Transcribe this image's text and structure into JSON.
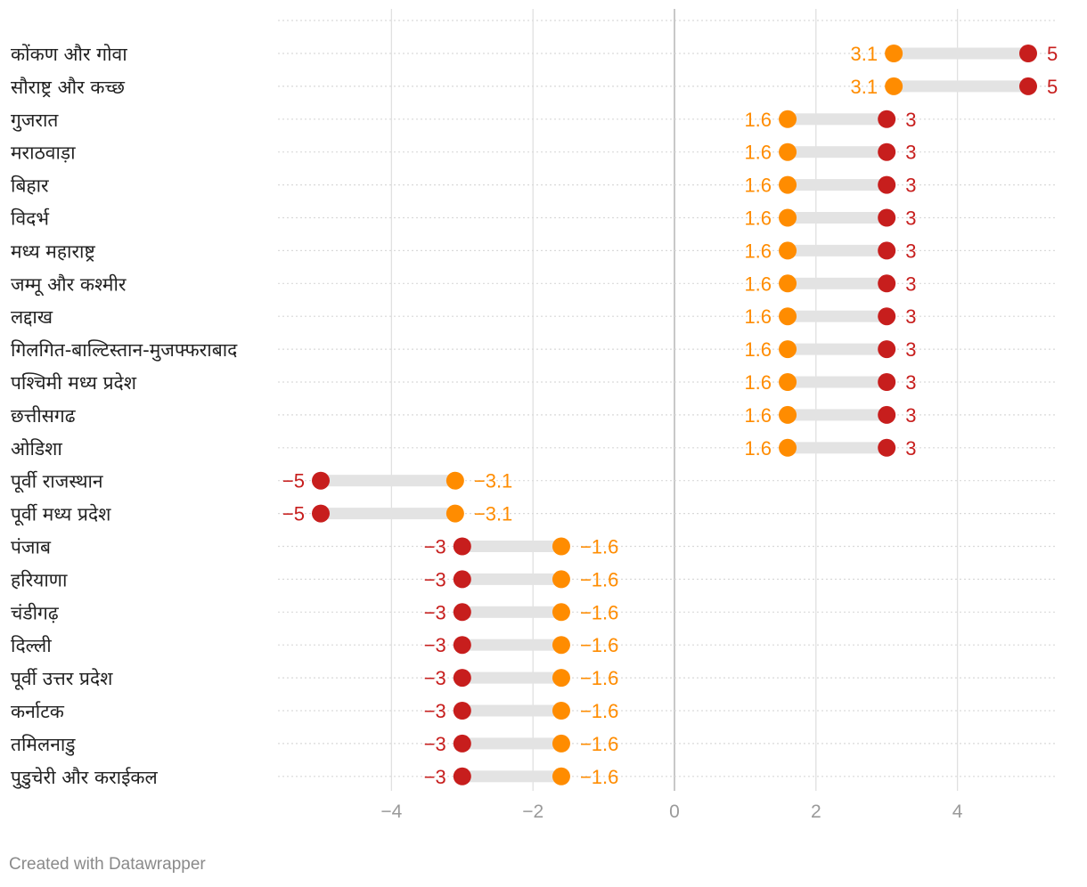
{
  "colors": {
    "min_marker": "#ff8c00",
    "max_marker": "#c71e1d",
    "range_bar": "#e3e3e3",
    "grid": "#e0e0e0",
    "zero_line": "#c8c8c8",
    "row_dots": "#d9d9d9",
    "label_text": "#222222",
    "tick_text": "#9a9a9a"
  },
  "chart_data": {
    "type": "range-plot",
    "xlim": [
      -5.6,
      5.4
    ],
    "ticks": [
      {
        "value": -4,
        "label": "−4"
      },
      {
        "value": -2,
        "label": "−2"
      },
      {
        "value": 0,
        "label": "0"
      },
      {
        "value": 2,
        "label": "2"
      },
      {
        "value": 4,
        "label": "4"
      }
    ],
    "series": [
      {
        "name": "orange",
        "color": "#ff8c00"
      },
      {
        "name": "red",
        "color": "#c71e1d"
      }
    ],
    "rows": [
      {
        "label": "कोंकण और गोवा",
        "orange": 3.1,
        "red": 5,
        "orange_label": "3.1",
        "red_label": "5"
      },
      {
        "label": "सौराष्ट्र और कच्छ",
        "orange": 3.1,
        "red": 5,
        "orange_label": "3.1",
        "red_label": "5"
      },
      {
        "label": "गुजरात",
        "orange": 1.6,
        "red": 3,
        "orange_label": "1.6",
        "red_label": "3"
      },
      {
        "label": "मराठवाड़ा",
        "orange": 1.6,
        "red": 3,
        "orange_label": "1.6",
        "red_label": "3"
      },
      {
        "label": "बिहार",
        "orange": 1.6,
        "red": 3,
        "orange_label": "1.6",
        "red_label": "3"
      },
      {
        "label": "विदर्भ",
        "orange": 1.6,
        "red": 3,
        "orange_label": "1.6",
        "red_label": "3"
      },
      {
        "label": "मध्य महाराष्ट्र",
        "orange": 1.6,
        "red": 3,
        "orange_label": "1.6",
        "red_label": "3"
      },
      {
        "label": "जम्मू और कश्मीर",
        "orange": 1.6,
        "red": 3,
        "orange_label": "1.6",
        "red_label": "3"
      },
      {
        "label": "लद्दाख",
        "orange": 1.6,
        "red": 3,
        "orange_label": "1.6",
        "red_label": "3"
      },
      {
        "label": "गिलगित-बाल्टिस्तान-मुजफ्फराबाद",
        "orange": 1.6,
        "red": 3,
        "orange_label": "1.6",
        "red_label": "3"
      },
      {
        "label": "पश्चिमी मध्य प्रदेश",
        "orange": 1.6,
        "red": 3,
        "orange_label": "1.6",
        "red_label": "3"
      },
      {
        "label": "छत्तीसगढ",
        "orange": 1.6,
        "red": 3,
        "orange_label": "1.6",
        "red_label": "3"
      },
      {
        "label": "ओडिशा",
        "orange": 1.6,
        "red": 3,
        "orange_label": "1.6",
        "red_label": "3"
      },
      {
        "label": "पूर्वी राजस्थान",
        "orange": -3.1,
        "red": -5,
        "orange_label": "−3.1",
        "red_label": "−5"
      },
      {
        "label": "पूर्वी मध्य प्रदेश",
        "orange": -3.1,
        "red": -5,
        "orange_label": "−3.1",
        "red_label": "−5"
      },
      {
        "label": "पंजाब",
        "orange": -1.6,
        "red": -3,
        "orange_label": "−1.6",
        "red_label": "−3"
      },
      {
        "label": "हरियाणा",
        "orange": -1.6,
        "red": -3,
        "orange_label": "−1.6",
        "red_label": "−3"
      },
      {
        "label": "चंडीगढ़",
        "orange": -1.6,
        "red": -3,
        "orange_label": "−1.6",
        "red_label": "−3"
      },
      {
        "label": "दिल्ली",
        "orange": -1.6,
        "red": -3,
        "orange_label": "−1.6",
        "red_label": "−3"
      },
      {
        "label": "पूर्वी उत्तर प्रदेश",
        "orange": -1.6,
        "red": -3,
        "orange_label": "−1.6",
        "red_label": "−3"
      },
      {
        "label": "कर्नाटक",
        "orange": -1.6,
        "red": -3,
        "orange_label": "−1.6",
        "red_label": "−3"
      },
      {
        "label": "तमिलनाडु",
        "orange": -1.6,
        "red": -3,
        "orange_label": "−1.6",
        "red_label": "−3"
      },
      {
        "label": "पुडुचेरी और कराईकल",
        "orange": -1.6,
        "red": -3,
        "orange_label": "−1.6",
        "red_label": "−3"
      }
    ]
  },
  "footer": {
    "credit": "Created with Datawrapper"
  }
}
